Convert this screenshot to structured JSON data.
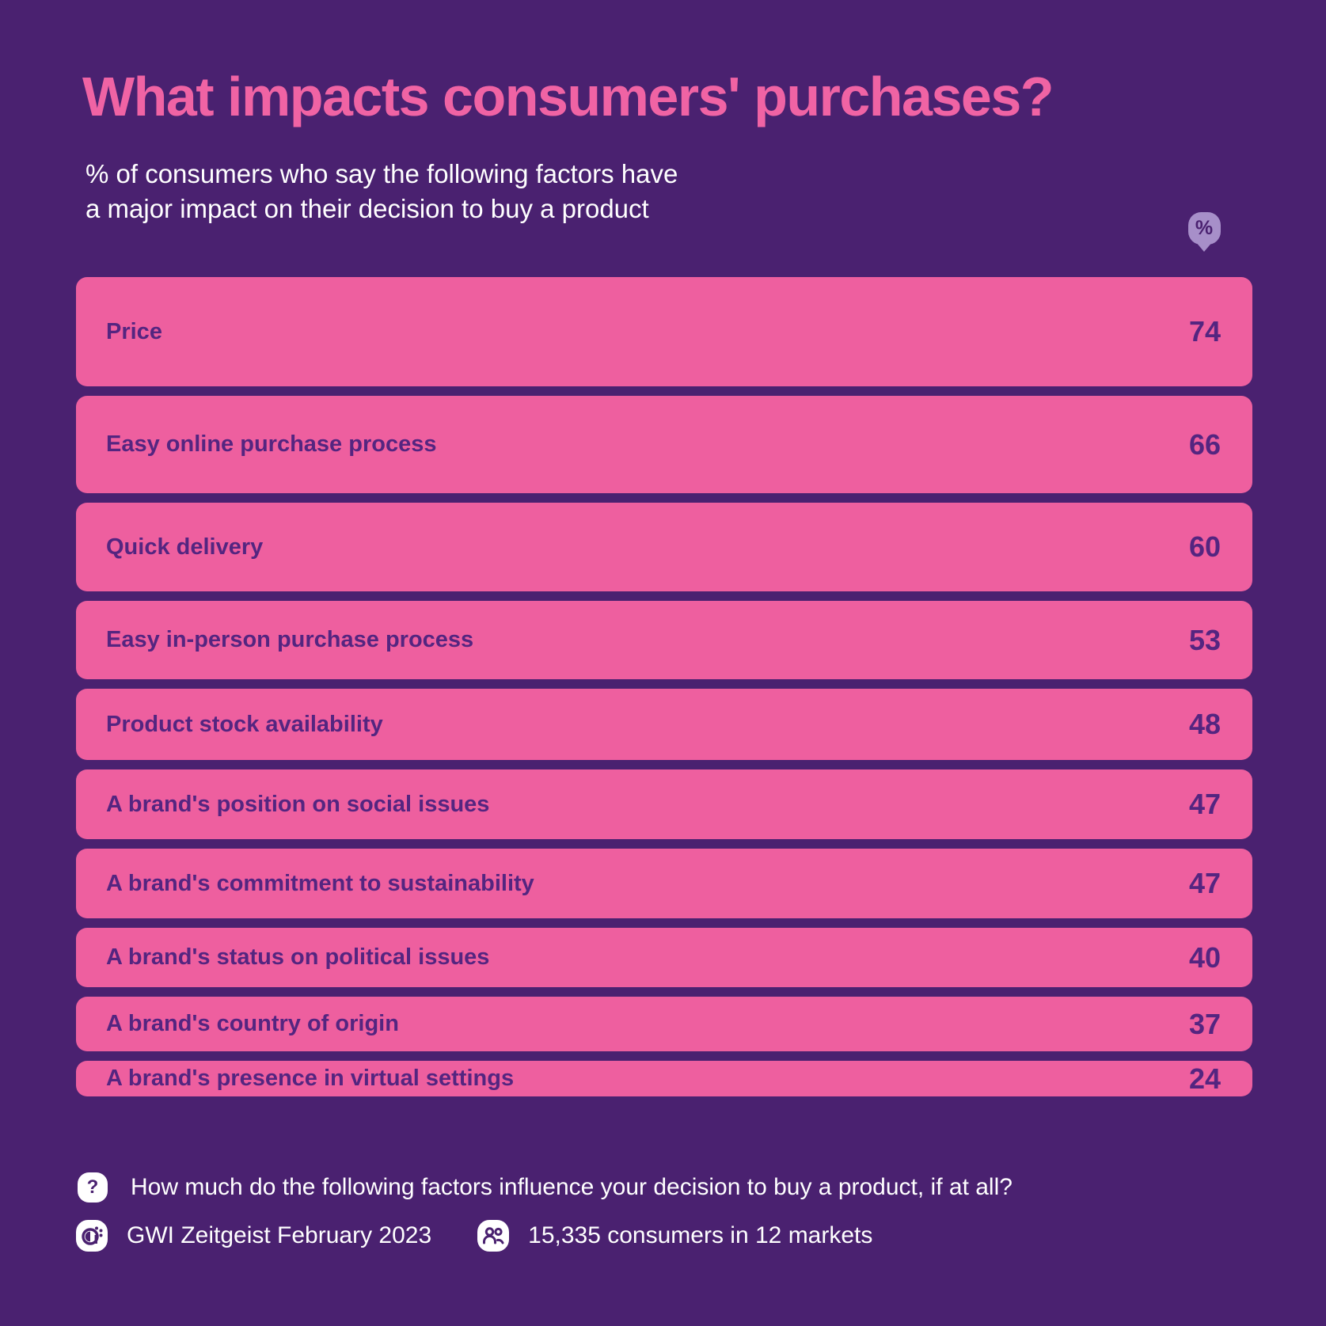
{
  "theme": {
    "background": "#4A2170",
    "bar_pink": "#EE5F9F",
    "title_pink": "#F063A4",
    "bar_text_purple": "#542580",
    "badge_lavender": "#A78FC9",
    "text_white": "#FFFFFF"
  },
  "header": {
    "title": "What impacts consumers' purchases?",
    "subtitle_line1": "% of consumers who say the following factors have",
    "subtitle_line2": "a major impact on their decision to buy a product",
    "percent_badge": "%"
  },
  "chart_data": {
    "type": "bar",
    "orientation": "horizontal rows, bar height encodes value",
    "title": "What impacts consumers' purchases?",
    "value_unit": "%",
    "value_range": [
      0,
      100
    ],
    "grid": false,
    "legend": false,
    "categories": [
      "Price",
      "Easy online purchase process",
      "Quick delivery",
      "Easy in-person purchase process",
      "Product stock availability",
      "A brand's position on social issues",
      "A brand's commitment to sustainability",
      "A brand's status on political issues",
      "A brand's country of origin",
      "A brand's presence in virtual settings"
    ],
    "values": [
      74,
      66,
      60,
      53,
      48,
      47,
      47,
      40,
      37,
      24
    ]
  },
  "footer": {
    "question_icon_glyph": "?",
    "question": "How much do the following factors influence your decision to buy a product, if at all?",
    "source": "GWI Zeitgeist February 2023",
    "sample": "15,335 consumers in 12 markets"
  }
}
